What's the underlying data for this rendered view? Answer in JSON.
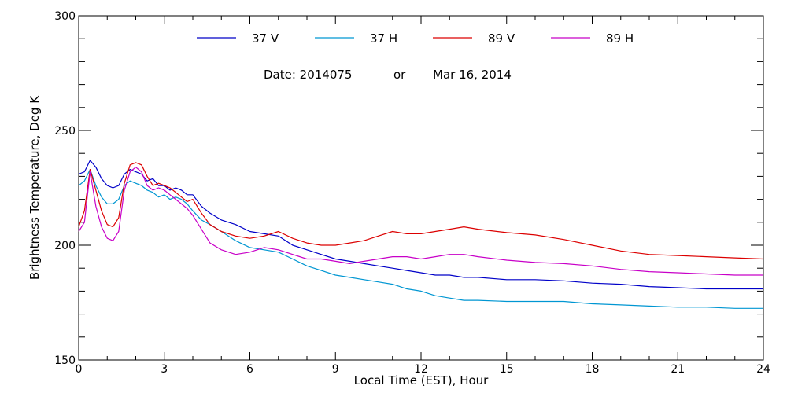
{
  "chart_data": {
    "type": "line",
    "title": "",
    "xlabel": "Local Time (EST), Hour",
    "ylabel": "Brightness Temperature, Deg K",
    "xlim": [
      0,
      24
    ],
    "ylim": [
      150,
      300
    ],
    "x_ticks": [
      0,
      3,
      6,
      9,
      12,
      15,
      18,
      21,
      24
    ],
    "y_ticks": [
      150,
      200,
      250,
      300
    ],
    "x_minor_step": 1,
    "y_minor_step": 10,
    "grid": false,
    "legend_position": "top",
    "annotation": {
      "date_label": "Date: 2014075",
      "or_label": "or",
      "date_text": "Mar 16, 2014"
    },
    "series": [
      {
        "name": "37 V",
        "color": "#0000c8",
        "x": [
          0,
          0.2,
          0.4,
          0.6,
          0.8,
          1.0,
          1.2,
          1.4,
          1.6,
          1.8,
          2.0,
          2.2,
          2.4,
          2.6,
          2.8,
          3.0,
          3.2,
          3.4,
          3.6,
          3.8,
          4.0,
          4.3,
          4.6,
          5.0,
          5.5,
          6.0,
          6.5,
          7.0,
          7.5,
          8.0,
          8.5,
          9.0,
          9.5,
          10.0,
          10.5,
          11.0,
          11.5,
          12.0,
          12.5,
          13.0,
          13.5,
          14.0,
          15.0,
          16.0,
          17.0,
          18.0,
          19.0,
          20.0,
          21.0,
          22.0,
          23.0,
          24.0
        ],
        "y": [
          231,
          232,
          237,
          234,
          229,
          226,
          225,
          226,
          231,
          233,
          232,
          231,
          228,
          229,
          226,
          226,
          224,
          225,
          224,
          222,
          222,
          217,
          214,
          211,
          209,
          206,
          205,
          204,
          200,
          198,
          196,
          194,
          193,
          192,
          191,
          190,
          189,
          188,
          187,
          187,
          186,
          186,
          185,
          185,
          184.5,
          183.5,
          183,
          182,
          181.5,
          181,
          181,
          181
        ]
      },
      {
        "name": "37 H",
        "color": "#0096d2",
        "x": [
          0,
          0.2,
          0.4,
          0.6,
          0.8,
          1.0,
          1.2,
          1.4,
          1.6,
          1.8,
          2.0,
          2.2,
          2.4,
          2.6,
          2.8,
          3.0,
          3.2,
          3.4,
          3.6,
          3.8,
          4.0,
          4.3,
          4.6,
          5.0,
          5.5,
          6.0,
          6.5,
          7.0,
          7.5,
          8.0,
          8.5,
          9.0,
          9.5,
          10.0,
          10.5,
          11.0,
          11.5,
          12.0,
          12.5,
          13.0,
          13.5,
          14.0,
          15.0,
          16.0,
          17.0,
          18.0,
          19.0,
          20.0,
          21.0,
          22.0,
          23.0,
          24.0
        ],
        "y": [
          226,
          228,
          233,
          226,
          221,
          218,
          218,
          220,
          226,
          228,
          227,
          226,
          224,
          223,
          221,
          222,
          220,
          221,
          220,
          218,
          215,
          211,
          209,
          206,
          202,
          199,
          198,
          197,
          194,
          191,
          189,
          187,
          186,
          185,
          184,
          183,
          181,
          180,
          178,
          177,
          176,
          176,
          175.5,
          175.5,
          175.5,
          174.5,
          174,
          173.5,
          173,
          173,
          172.5,
          172.5
        ]
      },
      {
        "name": "89 V",
        "color": "#dc0000",
        "x": [
          0,
          0.2,
          0.4,
          0.6,
          0.8,
          1.0,
          1.2,
          1.4,
          1.6,
          1.8,
          2.0,
          2.2,
          2.4,
          2.6,
          2.8,
          3.0,
          3.2,
          3.4,
          3.6,
          3.8,
          4.0,
          4.3,
          4.6,
          5.0,
          5.5,
          6.0,
          6.5,
          7.0,
          7.5,
          8.0,
          8.5,
          9.0,
          9.5,
          10.0,
          10.5,
          11.0,
          11.5,
          12.0,
          12.5,
          13.0,
          13.5,
          14.0,
          15.0,
          16.0,
          17.0,
          18.0,
          19.0,
          20.0,
          21.0,
          22.0,
          23.0,
          24.0
        ],
        "y": [
          208,
          215,
          233,
          224,
          215,
          209,
          208,
          212,
          227,
          235,
          236,
          235,
          230,
          226,
          227,
          226,
          225,
          223,
          221,
          219,
          220,
          214,
          209,
          206,
          204,
          203,
          204,
          206,
          203,
          201,
          200,
          200,
          201,
          202,
          204,
          206,
          205,
          205,
          206,
          207,
          208,
          207,
          205.5,
          204.5,
          202.5,
          200,
          197.5,
          196,
          195.5,
          195,
          194.5,
          194
        ]
      },
      {
        "name": "89 H",
        "color": "#c800c8",
        "x": [
          0,
          0.2,
          0.4,
          0.6,
          0.8,
          1.0,
          1.2,
          1.4,
          1.6,
          1.8,
          2.0,
          2.2,
          2.4,
          2.6,
          2.8,
          3.0,
          3.2,
          3.4,
          3.6,
          3.8,
          4.0,
          4.3,
          4.6,
          5.0,
          5.5,
          6.0,
          6.5,
          7.0,
          7.5,
          8.0,
          8.5,
          9.0,
          9.5,
          10.0,
          10.5,
          11.0,
          11.5,
          12.0,
          12.5,
          13.0,
          13.5,
          14.0,
          15.0,
          16.0,
          17.0,
          18.0,
          19.0,
          20.0,
          21.0,
          22.0,
          23.0,
          24.0
        ],
        "y": [
          206,
          210,
          232,
          217,
          208,
          203,
          202,
          206,
          224,
          232,
          234,
          232,
          226,
          224,
          225,
          224,
          222,
          220,
          218,
          216,
          213,
          207,
          201,
          198,
          196,
          197,
          199,
          198,
          196,
          194,
          194,
          193,
          192,
          193,
          194,
          195,
          195,
          194,
          195,
          196,
          196,
          195,
          193.5,
          192.5,
          192,
          191,
          189.5,
          188.5,
          188,
          187.5,
          187,
          187
        ]
      }
    ]
  }
}
